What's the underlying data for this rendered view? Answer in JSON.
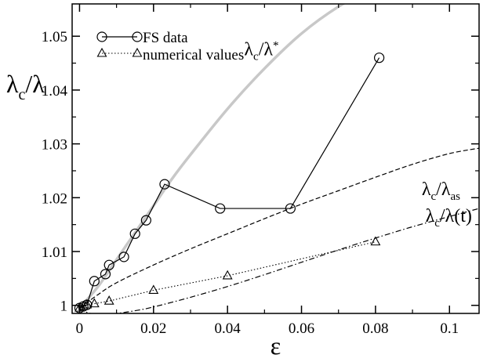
{
  "chart_data": {
    "type": "line",
    "xlabel": "ε",
    "ylabel_main": "λ",
    "ylabel_sub": "c",
    "ylabel_rest": "/λ",
    "xlim": [
      -0.002,
      0.108
    ],
    "ylim": [
      0.9985,
      1.056
    ],
    "x_ticks": [
      0,
      0.02,
      0.04,
      0.06,
      0.08,
      0.1
    ],
    "x_tick_labels": [
      "0",
      "0.02",
      "0.04",
      "0.06",
      "0.08",
      "0.1"
    ],
    "y_ticks": [
      1.0,
      1.01,
      1.02,
      1.03,
      1.04,
      1.05
    ],
    "y_tick_labels": [
      "1",
      "1.01",
      "1.02",
      "1.03",
      "1.04",
      "1.05"
    ],
    "grid": false,
    "legend_position": "top-left",
    "legend": [
      {
        "label": "FS data",
        "marker": "circle"
      },
      {
        "label": "numerical values",
        "marker": "triangle"
      }
    ],
    "series": [
      {
        "name": "FS data",
        "style": "solid-black-circles",
        "x": [
          0.0,
          0.001,
          0.002,
          0.004,
          0.007,
          0.008,
          0.012,
          0.015,
          0.018,
          0.023,
          0.038,
          0.057,
          0.081
        ],
        "y": [
          0.9995,
          0.9998,
          1.0001,
          1.0045,
          1.0058,
          1.0075,
          1.009,
          1.0133,
          1.0158,
          1.0225,
          1.018,
          1.018,
          1.046
        ]
      },
      {
        "name": "numerical values",
        "style": "dotted-black-triangles",
        "x": [
          0.0,
          0.001,
          0.002,
          0.004,
          0.008,
          0.02,
          0.04,
          0.08
        ],
        "y": [
          0.9995,
          0.9998,
          1.0001,
          1.0003,
          1.0008,
          1.0028,
          1.0055,
          1.0118
        ]
      },
      {
        "curve": "lambda_star",
        "style": "solid-gray-thick",
        "x": [
          0.0,
          0.005,
          0.01,
          0.015,
          0.02,
          0.025,
          0.03,
          0.04,
          0.05,
          0.06,
          0.07,
          0.08
        ],
        "y": [
          0.9995,
          1.0035,
          1.0085,
          1.0135,
          1.0185,
          1.0235,
          1.028,
          1.0365,
          1.044,
          1.0505,
          1.0555,
          1.0592
        ]
      },
      {
        "curve": "lambda_as",
        "style": "dashed-black",
        "x": [
          0.0,
          0.005,
          0.01,
          0.02,
          0.03,
          0.04,
          0.05,
          0.06,
          0.07,
          0.08,
          0.09,
          0.1,
          0.108
        ],
        "y": [
          0.9995,
          1.002,
          1.0042,
          1.0075,
          1.0105,
          1.0133,
          1.0161,
          1.0188,
          1.0213,
          1.0238,
          1.0262,
          1.0282,
          1.0292
        ]
      },
      {
        "curve": "lambda_t",
        "style": "dashdot-black",
        "x": [
          0.0,
          0.002,
          0.005,
          0.01,
          0.015,
          0.02,
          0.03,
          0.04,
          0.05,
          0.06,
          0.07,
          0.08,
          0.09,
          0.1,
          0.108
        ],
        "y": [
          0.9995,
          0.9987,
          0.9983,
          0.9985,
          0.999,
          0.9997,
          1.0015,
          1.0035,
          1.0057,
          1.008,
          1.0103,
          1.0125,
          1.0146,
          1.0165,
          1.018
        ]
      }
    ],
    "annotations": [
      {
        "id": "star",
        "x": 0.0445,
        "y": 1.0465,
        "main": "λ",
        "sub": "c",
        "mid": "/λ",
        "sup": "*",
        "sub2": ""
      },
      {
        "id": "as",
        "x": 0.0925,
        "y": 1.0205,
        "main": "λ",
        "sub": "c",
        "mid": "/λ",
        "sup": "",
        "sub2": "as"
      },
      {
        "id": "t",
        "x": 0.0935,
        "y": 1.0155,
        "main": "λ",
        "sub": "c",
        "mid": "/λ(t)",
        "sup": "",
        "sub2": ""
      }
    ]
  }
}
